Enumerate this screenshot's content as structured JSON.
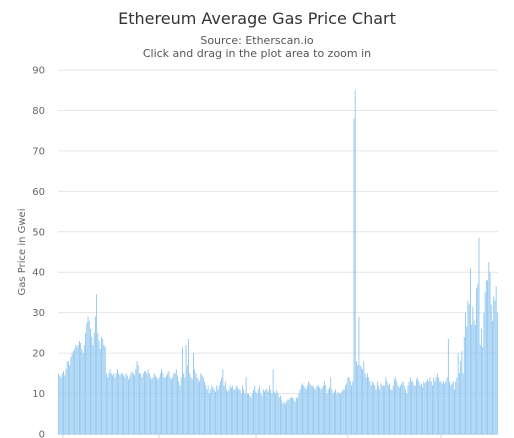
{
  "chart_data": {
    "type": "bar",
    "title": "Ethereum Average Gas Price Chart",
    "subtitle": "Source: Etherscan.io",
    "subtitle2": "Click and drag in the plot area to zoom in",
    "ylabel": "Gas Price in Gwei",
    "xlabel": "",
    "ylim": [
      0,
      90
    ],
    "yticks": [
      "0",
      "10",
      "20",
      "30",
      "40",
      "50",
      "60",
      "70",
      "80",
      "90"
    ],
    "grid": true,
    "legend": "none",
    "color": "#90c6f0",
    "values": [
      15,
      14.5,
      14,
      15,
      15.5,
      14.5,
      16,
      18,
      18,
      17,
      19,
      20,
      20.5,
      21,
      22,
      21.5,
      22,
      23,
      22.5,
      21,
      20,
      22,
      25,
      27.5,
      29,
      28,
      26,
      24,
      22,
      25,
      29,
      34.5,
      25,
      23,
      21,
      24,
      23.5,
      22,
      21.5,
      15,
      14,
      15,
      16,
      15,
      14.5,
      15,
      14,
      15,
      16,
      15,
      14.5,
      15,
      15,
      14.5,
      14,
      15,
      14.5,
      13.5,
      14,
      15,
      15.5,
      15,
      14.5,
      16,
      18,
      17,
      15,
      15,
      14,
      15,
      15.5,
      15.5,
      15,
      16,
      15,
      14,
      13.5,
      14,
      15,
      14.5,
      14,
      13.5,
      14,
      15,
      16,
      15,
      14,
      14,
      14.5,
      15,
      15.5,
      14,
      13.5,
      14,
      15,
      15,
      16,
      14.5,
      13,
      12,
      14,
      21.5,
      15,
      14,
      22,
      17,
      23.5,
      15,
      14,
      13.5,
      20,
      16,
      15,
      14,
      13.5,
      13,
      15,
      14.5,
      14,
      13,
      12,
      11,
      12,
      10,
      11,
      12,
      11.5,
      11,
      10.5,
      12,
      11,
      12,
      13,
      14,
      16,
      12,
      13,
      11,
      10.5,
      11,
      12,
      11.5,
      12,
      11,
      11,
      12,
      11.5,
      11,
      11,
      10,
      12,
      11,
      10,
      14,
      10,
      10,
      9.5,
      9,
      10,
      11,
      12,
      10.5,
      10,
      11,
      12,
      10,
      9.5,
      11,
      10.5,
      11,
      11,
      10.5,
      12,
      11,
      10,
      16,
      10.5,
      10,
      11,
      10,
      9,
      9.5,
      8.5,
      7.5,
      8,
      7.5,
      8,
      8.5,
      8.5,
      9,
      9,
      9,
      8.5,
      8,
      9,
      9,
      10,
      11,
      12,
      12.5,
      12,
      11.5,
      11,
      12,
      13,
      12.5,
      12,
      12,
      11.5,
      11,
      11.5,
      12,
      12,
      11.5,
      11,
      11.5,
      12,
      13,
      12,
      10,
      11,
      11.5,
      14,
      11,
      10,
      10.5,
      11,
      10,
      10.5,
      10,
      10,
      10.5,
      11,
      11,
      12,
      12.5,
      14,
      14,
      13,
      12,
      13,
      78,
      85,
      18,
      17,
      29,
      17,
      16.5,
      16,
      18,
      15,
      14,
      15,
      14,
      13,
      12,
      13,
      12.5,
      12,
      11,
      13,
      12,
      11,
      12.5,
      12,
      12,
      12,
      14,
      13,
      12,
      12.5,
      11,
      11,
      12,
      13.5,
      14,
      13,
      12,
      11.5,
      12,
      12.5,
      13,
      12,
      11,
      10,
      12,
      13,
      14,
      13,
      13,
      12,
      12,
      13.5,
      14,
      13,
      12,
      12.5,
      11.5,
      13,
      12.5,
      13,
      13.5,
      13,
      14,
      13,
      12,
      14,
      13,
      14,
      15,
      14,
      13,
      13,
      12.5,
      13,
      12.5,
      13,
      14,
      23.5,
      13,
      12,
      12.5,
      13,
      11,
      13,
      14,
      20,
      15,
      18,
      20.5,
      15,
      24,
      30,
      26.5,
      33,
      32,
      41,
      27,
      31.5,
      28,
      27,
      36,
      37,
      48.5,
      22,
      26,
      21.5,
      30,
      35,
      38,
      38,
      42.5,
      40,
      32,
      28,
      34,
      33,
      36.5,
      30
    ]
  }
}
